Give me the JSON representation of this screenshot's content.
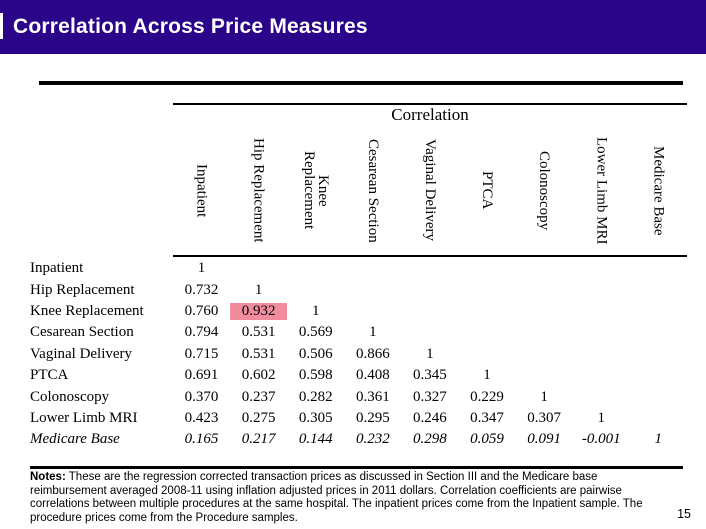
{
  "slide": {
    "title": "Correlation Across Price Measures",
    "page_number": "15"
  },
  "colors": {
    "header_bar": "#2A058A",
    "highlight": "#F08C9E",
    "rule": "#000000",
    "title_text": "#FFFFFF"
  },
  "chart_data": {
    "type": "table",
    "title": "Correlation",
    "column_headers": [
      {
        "label": "Inpatient",
        "lines": [
          "Inpatient"
        ]
      },
      {
        "label": "Hip Replacement",
        "lines": [
          "Hip Replacement"
        ]
      },
      {
        "label": "Knee Replacement",
        "lines": [
          "Knee",
          "Replacement"
        ]
      },
      {
        "label": "Cesarean Section",
        "lines": [
          "Cesarean Section"
        ]
      },
      {
        "label": "Vaginal Delivery",
        "lines": [
          "Vaginal Delivery"
        ]
      },
      {
        "label": "PTCA",
        "lines": [
          "PTCA"
        ]
      },
      {
        "label": "Colonoscopy",
        "lines": [
          "Colonoscopy"
        ]
      },
      {
        "label": "Lower Limb MRI",
        "lines": [
          "Lower Limb MRI"
        ]
      },
      {
        "label": "Medicare Base",
        "lines": [
          "Medicare Base"
        ]
      }
    ],
    "rows": [
      {
        "label": "Inpatient",
        "italic": false,
        "values": [
          "1"
        ]
      },
      {
        "label": "Hip Replacement",
        "italic": false,
        "values": [
          "0.732",
          "1"
        ]
      },
      {
        "label": "Knee Replacement",
        "italic": false,
        "values": [
          "0.760",
          "0.932",
          "1"
        ]
      },
      {
        "label": "Cesarean Section",
        "italic": false,
        "values": [
          "0.794",
          "0.531",
          "0.569",
          "1"
        ]
      },
      {
        "label": "Vaginal Delivery",
        "italic": false,
        "values": [
          "0.715",
          "0.531",
          "0.506",
          "0.866",
          "1"
        ]
      },
      {
        "label": "PTCA",
        "italic": false,
        "values": [
          "0.691",
          "0.602",
          "0.598",
          "0.408",
          "0.345",
          "1"
        ]
      },
      {
        "label": "Colonoscopy",
        "italic": false,
        "values": [
          "0.370",
          "0.237",
          "0.282",
          "0.361",
          "0.327",
          "0.229",
          "1"
        ]
      },
      {
        "label": "Lower Limb MRI",
        "italic": false,
        "values": [
          "0.423",
          "0.275",
          "0.305",
          "0.295",
          "0.246",
          "0.347",
          "0.307",
          "1"
        ]
      },
      {
        "label": "Medicare Base",
        "italic": true,
        "values": [
          "0.165",
          "0.217",
          "0.144",
          "0.232",
          "0.298",
          "0.059",
          "0.091",
          "-0.001",
          "1"
        ]
      }
    ],
    "highlight": {
      "row_label": "Knee Replacement",
      "column_label": "Hip Replacement",
      "row_index": 2,
      "col_index": 1,
      "value": "0.932"
    }
  },
  "notes": {
    "label": "Notes:",
    "text": "These are the regression corrected transaction prices as discussed in Section III and the Medicare base reimbursement averaged 2008-11 using inflation adjusted prices in 2011 dollars. Correlation coefficients are pairwise correlations between multiple procedures at the same hospital. The inpatient prices come from the Inpatient sample. The procedure prices come from the Procedure samples."
  }
}
